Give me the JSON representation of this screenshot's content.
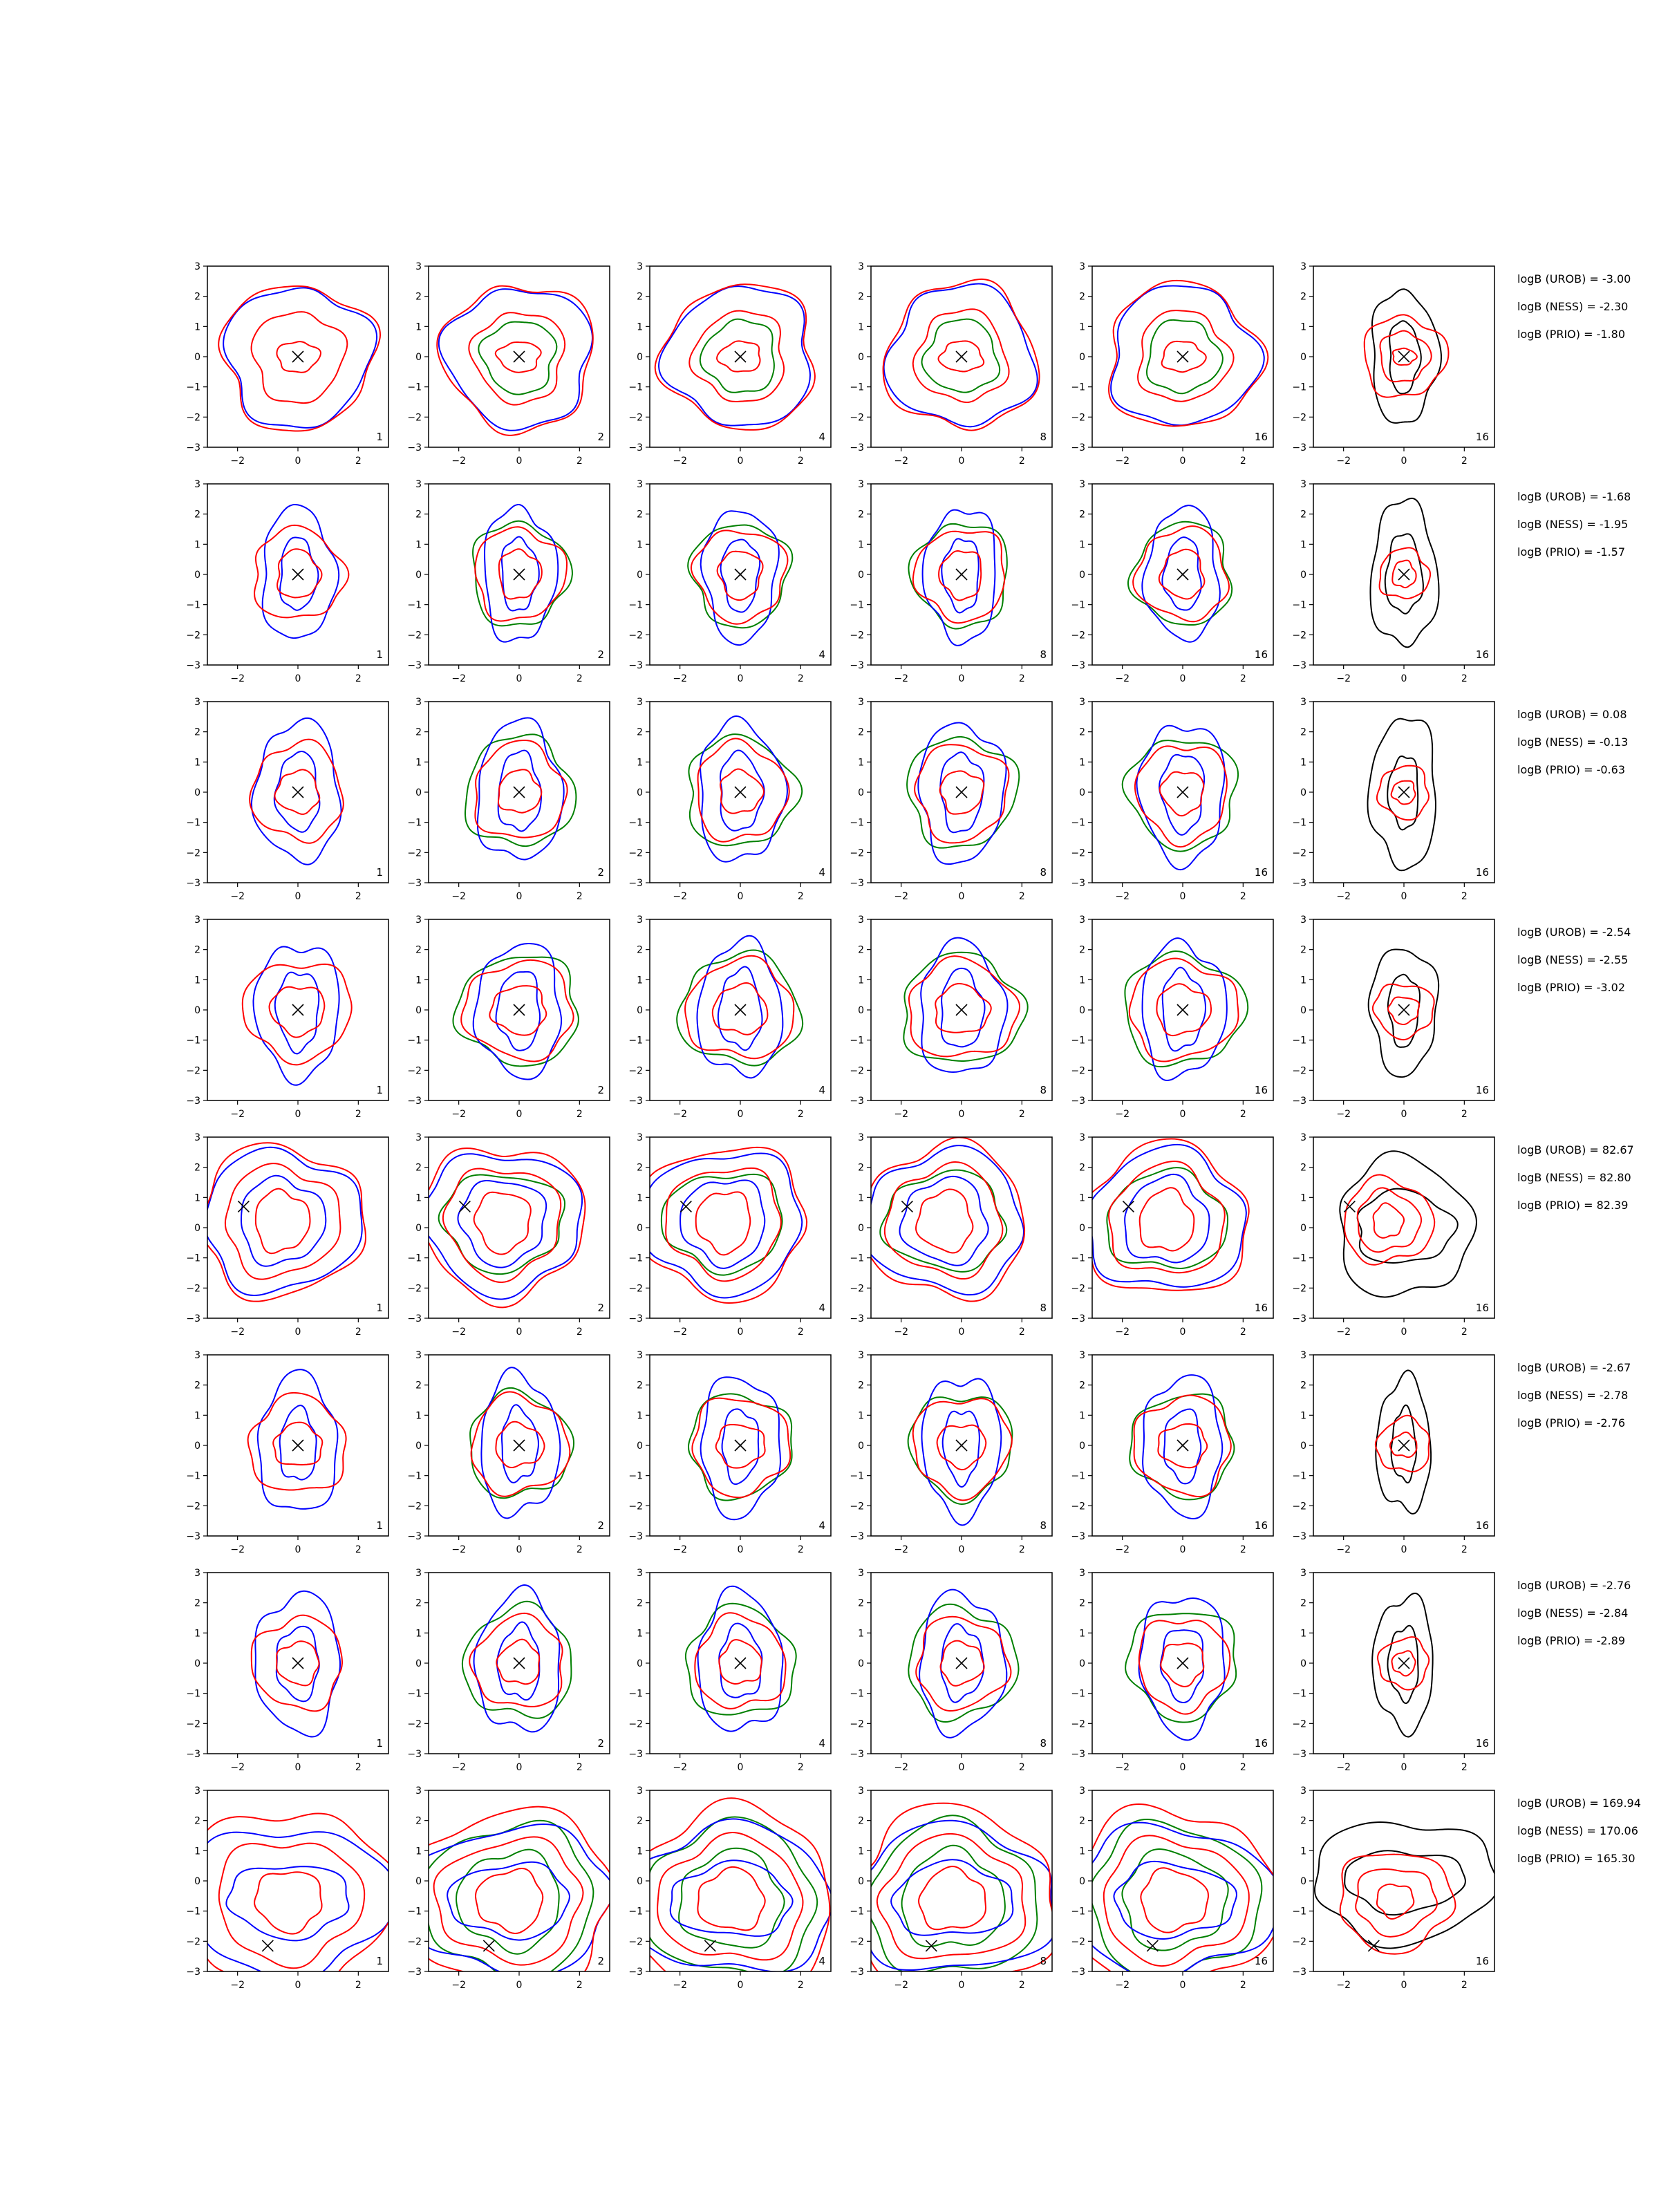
{
  "chart_data": {
    "type": "contour-grid",
    "rows": 8,
    "columns": 6,
    "xlim": [
      -3,
      3
    ],
    "ylim": [
      -3,
      3
    ],
    "xticks": [
      -2,
      0,
      2
    ],
    "yticks": [
      -3,
      -2,
      -1,
      0,
      1,
      2,
      3
    ],
    "column_labels": [
      "1",
      "2",
      "4",
      "8",
      "16",
      "16"
    ],
    "series_colors": {
      "blue": "#0000ff",
      "red": "#ff0000",
      "green": "#008000",
      "black": "#000000"
    },
    "panel_rows": [
      {
        "marker": [
          0,
          0
        ],
        "logB": [
          "logB (UROB) = -3.00",
          "logB (NESS) = -2.30",
          "logB (PRIO) = -1.80"
        ],
        "blue": [
          [
            2.4,
            2.3
          ]
        ],
        "red": [
          [
            2.5,
            2.4
          ],
          [
            1.5,
            1.5
          ],
          [
            0.7,
            0.5
          ]
        ],
        "green": [
          [
            1.2,
            1.2
          ]
        ],
        "black": [
          [
            1.1,
            2.2
          ],
          [
            0.5,
            1.2
          ]
        ]
      },
      {
        "marker": [
          0,
          0
        ],
        "logB": [
          "logB (UROB) = -1.68",
          "logB (NESS) = -1.95",
          "logB (PRIO) = -1.57"
        ],
        "blue": [
          [
            1.2,
            2.2
          ],
          [
            0.6,
            1.2
          ]
        ],
        "red": [
          [
            1.5,
            1.5
          ],
          [
            0.7,
            0.8
          ]
        ],
        "green": [
          [
            1.6,
            1.7
          ]
        ],
        "black": [
          [
            1.1,
            2.4
          ],
          [
            0.6,
            1.3
          ]
        ]
      },
      {
        "marker": [
          0,
          0
        ],
        "logB": [
          "logB (UROB) = 0.08",
          "logB (NESS) = -0.13",
          "logB (PRIO) = -0.63"
        ],
        "blue": [
          [
            1.4,
            2.3
          ],
          [
            0.7,
            1.3
          ]
        ],
        "red": [
          [
            1.5,
            1.6
          ],
          [
            0.7,
            0.7
          ]
        ],
        "green": [
          [
            1.8,
            1.8
          ]
        ],
        "black": [
          [
            1.1,
            2.5
          ],
          [
            0.5,
            1.2
          ]
        ]
      },
      {
        "marker": [
          0,
          0
        ],
        "logB": [
          "logB (UROB) = -2.54",
          "logB (NESS) = -2.55",
          "logB (PRIO) = -3.02"
        ],
        "blue": [
          [
            1.4,
            2.2
          ],
          [
            0.7,
            1.3
          ]
        ],
        "red": [
          [
            1.8,
            1.6
          ],
          [
            0.9,
            0.8
          ]
        ],
        "green": [
          [
            2.0,
            1.8
          ]
        ],
        "black": [
          [
            1.1,
            2.1
          ],
          [
            0.5,
            1.2
          ]
        ]
      },
      {
        "marker": [
          -1.8,
          0.7
        ],
        "logB": [
          "logB (UROB) = 82.67",
          "logB (NESS) = 82.80",
          "logB (PRIO) = 82.39"
        ],
        "blue": [
          [
            2.6,
            2.3
          ],
          [
            1.4,
            1.4
          ]
        ],
        "red": [
          [
            2.7,
            2.5
          ],
          [
            1.9,
            1.8
          ],
          [
            0.9,
            1.0
          ]
        ],
        "green": [
          [
            2.0,
            1.6
          ]
        ],
        "black": [
          [
            2.2,
            2.3
          ],
          [
            1.6,
            1.2
          ]
        ]
      },
      {
        "marker": [
          0,
          0
        ],
        "logB": [
          "logB (UROB) = -2.67",
          "logB (NESS) = -2.78",
          "logB (PRIO) = -2.76"
        ],
        "blue": [
          [
            1.3,
            2.3
          ],
          [
            0.6,
            1.2
          ]
        ],
        "red": [
          [
            1.6,
            1.6
          ],
          [
            0.8,
            0.7
          ]
        ],
        "green": [
          [
            1.7,
            1.7
          ]
        ],
        "black": [
          [
            0.9,
            2.2
          ],
          [
            0.4,
            1.2
          ]
        ]
      },
      {
        "marker": [
          0,
          0
        ],
        "logB": [
          "logB (UROB) = -2.76",
          "logB (NESS) = -2.84",
          "logB (PRIO) = -2.89"
        ],
        "blue": [
          [
            1.4,
            2.3
          ],
          [
            0.7,
            1.2
          ]
        ],
        "red": [
          [
            1.5,
            1.5
          ],
          [
            0.7,
            0.7
          ]
        ],
        "green": [
          [
            1.8,
            1.8
          ]
        ],
        "black": [
          [
            1.0,
            2.2
          ],
          [
            0.5,
            1.2
          ]
        ]
      },
      {
        "marker": [
          -1.0,
          -2.15
        ],
        "logB": [
          "logB (UROB) = 169.94",
          "logB (NESS) = 170.06",
          "logB (PRIO) = 165.30"
        ],
        "blue": [
          [
            3.4,
            2.4
          ],
          [
            2.0,
            1.2
          ]
        ],
        "red": [
          [
            3.4,
            3.0
          ],
          [
            2.4,
            2.0
          ],
          [
            1.1,
            1.0
          ]
        ],
        "green": [
          [
            2.8,
            2.5
          ],
          [
            1.7,
            1.6
          ]
        ],
        "black": [
          [
            3.0,
            2.0
          ],
          [
            2.0,
            1.0
          ]
        ]
      }
    ]
  }
}
